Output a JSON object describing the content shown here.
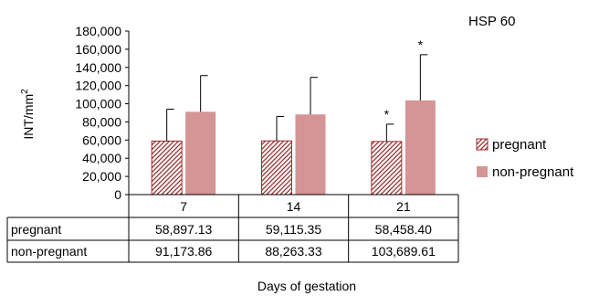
{
  "chart_data": {
    "type": "bar",
    "title": "HSP 60",
    "xlabel": "Days of gestation",
    "ylabel_base": "INT/mm",
    "ylabel_sup": "2",
    "ylim": [
      0,
      180000
    ],
    "y_ticks": [
      0,
      20000,
      40000,
      60000,
      80000,
      100000,
      120000,
      140000,
      160000,
      180000
    ],
    "y_tick_labels": [
      "0",
      "20,000",
      "40,000",
      "60,000",
      "80,000",
      "100,000",
      "120,000",
      "140,000",
      "160,000",
      "180,000"
    ],
    "categories": [
      "7",
      "14",
      "21"
    ],
    "series": [
      {
        "name": "pregnant",
        "values": [
          58897.13,
          59115.35,
          58458.4
        ],
        "value_labels": [
          "58,897.13",
          "59,115.35",
          "58,458.40"
        ],
        "error_upper": [
          94000,
          86000,
          77500
        ],
        "significance": [
          "",
          "",
          "*"
        ],
        "pattern": "diagonal-hatch",
        "color": "#9b2d2d"
      },
      {
        "name": "non-pregnant",
        "values": [
          91173.86,
          88263.33,
          103689.61
        ],
        "value_labels": [
          "91,173.86",
          "88,263.33",
          "103,689.61"
        ],
        "error_upper": [
          131000,
          129000,
          154000
        ],
        "significance": [
          "",
          "",
          "*"
        ],
        "pattern": "solid",
        "color": "#d39595"
      }
    ],
    "grid": false,
    "legend_position": "right",
    "data_table": true
  }
}
